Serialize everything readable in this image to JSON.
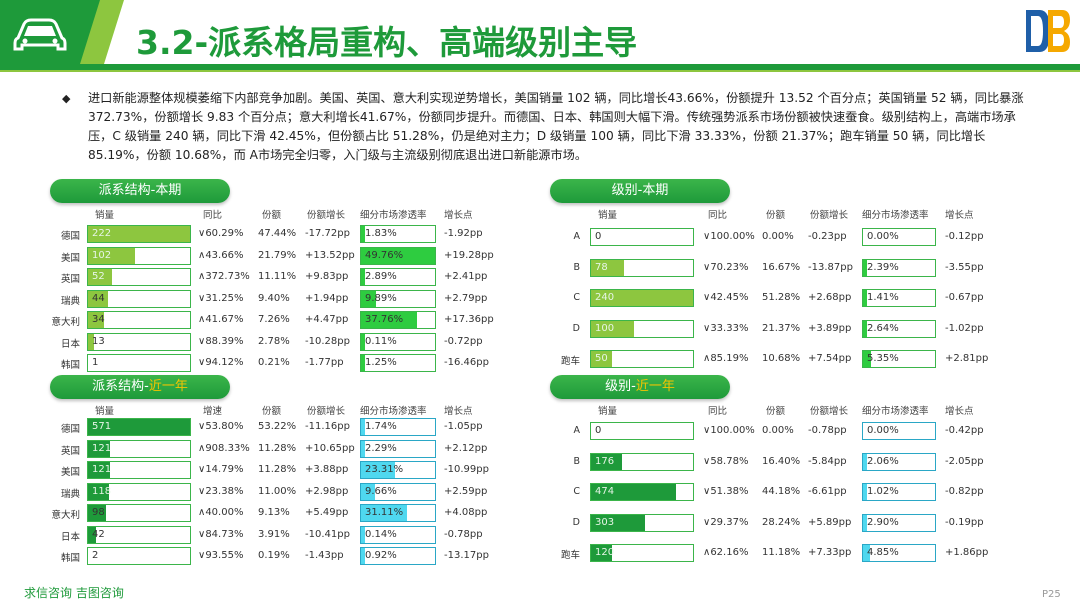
{
  "header": {
    "title": "3.2-派系格局重构、高端级别主导",
    "icons": [
      "car-icon",
      "brand-logo"
    ]
  },
  "intro": {
    "bullet": "◆",
    "text": "进口新能源整体规模萎缩下内部竞争加剧。美国、英国、意大利实现逆势增长，美国销量 102 辆，同比增长43.66%，份额提升 13.52 个百分点；英国销量 52 辆，同比暴涨 372.73%，份额增长 9.83 个百分点；意大利增长41.67%，份额同步提升。而德国、日本、韩国则大幅下滑。传统强势派系市场份额被快速蚕食。级别结构上，高端市场承压，C 级销量 240 辆，同比下滑 42.45%，但份额占比 51.28%，仍是绝对主力；D 级销量 100 辆，同比下滑 33.33%，份额 21.37%；跑车销量 50 辆，同比增长85.19%，份额 10.68%，而 A市场完全归零，入门级与主流级别彻底退出进口新能源市场。"
  },
  "colors": {
    "brand_green": "#1e9a3a",
    "light_green": "#8dc63f",
    "dark_green": "#1e9a3a",
    "cyan": "#2aa7c6",
    "highlight_yellow": "#f5c400"
  },
  "panels": [
    {
      "id": "faction-period",
      "title": "派系结构-本期",
      "title_highlight": "",
      "headers": [
        "销量",
        "同比",
        "份额",
        "份额增长",
        "细分市场渗透率",
        "增长点"
      ],
      "rows": [
        {
          "label": "德国",
          "sales": "222",
          "sales_value": 222,
          "yoy": "∨60.29%",
          "share": "47.44%",
          "share_change": "-17.72pp",
          "penetration": "1.83%",
          "penetration_value": 1.83,
          "growth": "-1.92pp"
        },
        {
          "label": "美国",
          "sales": "102",
          "sales_value": 102,
          "yoy": "∧43.66%",
          "share": "21.79%",
          "share_change": "+13.52pp",
          "penetration": "49.76%",
          "penetration_value": 49.76,
          "growth": "+19.28pp"
        },
        {
          "label": "英国",
          "sales": "52",
          "sales_value": 52,
          "yoy": "∧372.73%",
          "share": "11.11%",
          "share_change": "+9.83pp",
          "penetration": "2.89%",
          "penetration_value": 2.89,
          "growth": "+2.41pp"
        },
        {
          "label": "瑞典",
          "sales": "44",
          "sales_value": 44,
          "yoy": "∨31.25%",
          "share": "9.40%",
          "share_change": "+1.94pp",
          "penetration": "9.89%",
          "penetration_value": 9.89,
          "growth": "+2.79pp"
        },
        {
          "label": "意大利",
          "sales": "34",
          "sales_value": 34,
          "yoy": "∧41.67%",
          "share": "7.26%",
          "share_change": "+4.47pp",
          "penetration": "37.76%",
          "penetration_value": 37.76,
          "growth": "+17.36pp"
        },
        {
          "label": "日本",
          "sales": "13",
          "sales_value": 13,
          "yoy": "∨88.39%",
          "share": "2.78%",
          "share_change": "-10.28pp",
          "penetration": "0.11%",
          "penetration_value": 0.11,
          "growth": "-0.72pp"
        },
        {
          "label": "韩国",
          "sales": "1",
          "sales_value": 1,
          "yoy": "∨94.12%",
          "share": "0.21%",
          "share_change": "-1.77pp",
          "penetration": "1.25%",
          "penetration_value": 1.25,
          "growth": "-16.46pp"
        }
      ]
    },
    {
      "id": "level-period",
      "title": "级别-本期",
      "title_highlight": "",
      "headers": [
        "销量",
        "同比",
        "份额",
        "份额增长",
        "细分市场渗透率",
        "增长点"
      ],
      "rows": [
        {
          "label": "A",
          "sales": "0",
          "sales_value": 0,
          "yoy": "∨100.00%",
          "share": "0.00%",
          "share_change": "-0.23pp",
          "penetration": "0.00%",
          "penetration_value": 0,
          "growth": "-0.12pp"
        },
        {
          "label": "B",
          "sales": "78",
          "sales_value": 78,
          "yoy": "∨70.23%",
          "share": "16.67%",
          "share_change": "-13.87pp",
          "penetration": "2.39%",
          "penetration_value": 2.39,
          "growth": "-3.55pp"
        },
        {
          "label": "C",
          "sales": "240",
          "sales_value": 240,
          "yoy": "∨42.45%",
          "share": "51.28%",
          "share_change": "+2.68pp",
          "penetration": "1.41%",
          "penetration_value": 1.41,
          "growth": "-0.67pp"
        },
        {
          "label": "D",
          "sales": "100",
          "sales_value": 100,
          "yoy": "∨33.33%",
          "share": "21.37%",
          "share_change": "+3.89pp",
          "penetration": "2.64%",
          "penetration_value": 2.64,
          "growth": "-1.02pp"
        },
        {
          "label": "跑车",
          "sales": "50",
          "sales_value": 50,
          "yoy": "∧85.19%",
          "share": "10.68%",
          "share_change": "+7.54pp",
          "penetration": "5.35%",
          "penetration_value": 5.35,
          "growth": "+2.81pp"
        }
      ]
    },
    {
      "id": "faction-year",
      "title": "派系结构-",
      "title_highlight": "近一年",
      "headers": [
        "销量",
        "增速",
        "份额",
        "份额增长",
        "细分市场渗透率",
        "增长点"
      ],
      "rows": [
        {
          "label": "德国",
          "sales": "571",
          "sales_value": 571,
          "yoy": "∨53.80%",
          "share": "53.22%",
          "share_change": "-11.16pp",
          "penetration": "1.74%",
          "penetration_value": 1.74,
          "growth": "-1.05pp"
        },
        {
          "label": "英国",
          "sales": "121",
          "sales_value": 121,
          "yoy": "∧908.33%",
          "share": "11.28%",
          "share_change": "+10.65pp",
          "penetration": "2.29%",
          "penetration_value": 2.29,
          "growth": "+2.12pp"
        },
        {
          "label": "美国",
          "sales": "121",
          "sales_value": 121,
          "yoy": "∨14.79%",
          "share": "11.28%",
          "share_change": "+3.88pp",
          "penetration": "23.31%",
          "penetration_value": 23.31,
          "growth": "-10.99pp"
        },
        {
          "label": "瑞典",
          "sales": "118",
          "sales_value": 118,
          "yoy": "∨23.38%",
          "share": "11.00%",
          "share_change": "+2.98pp",
          "penetration": "9.66%",
          "penetration_value": 9.66,
          "growth": "+2.59pp"
        },
        {
          "label": "意大利",
          "sales": "98",
          "sales_value": 98,
          "yoy": "∧40.00%",
          "share": "9.13%",
          "share_change": "+5.49pp",
          "penetration": "31.11%",
          "penetration_value": 31.11,
          "growth": "+4.08pp"
        },
        {
          "label": "日本",
          "sales": "42",
          "sales_value": 42,
          "yoy": "∨84.73%",
          "share": "3.91%",
          "share_change": "-10.41pp",
          "penetration": "0.14%",
          "penetration_value": 0.14,
          "growth": "-0.78pp"
        },
        {
          "label": "韩国",
          "sales": "2",
          "sales_value": 2,
          "yoy": "∨93.55%",
          "share": "0.19%",
          "share_change": "-1.43pp",
          "penetration": "0.92%",
          "penetration_value": 0.92,
          "growth": "-13.17pp"
        }
      ]
    },
    {
      "id": "level-year",
      "title": "级别-",
      "title_highlight": "近一年",
      "headers": [
        "销量",
        "同比",
        "份额",
        "份额增长",
        "细分市场渗透率",
        "增长点"
      ],
      "rows": [
        {
          "label": "A",
          "sales": "0",
          "sales_value": 0,
          "yoy": "∨100.00%",
          "share": "0.00%",
          "share_change": "-0.78pp",
          "penetration": "0.00%",
          "penetration_value": 0,
          "growth": "-0.42pp"
        },
        {
          "label": "B",
          "sales": "176",
          "sales_value": 176,
          "yoy": "∨58.78%",
          "share": "16.40%",
          "share_change": "-5.84pp",
          "penetration": "2.06%",
          "penetration_value": 2.06,
          "growth": "-2.05pp"
        },
        {
          "label": "C",
          "sales": "474",
          "sales_value": 474,
          "yoy": "∨51.38%",
          "share": "44.18%",
          "share_change": "-6.61pp",
          "penetration": "1.02%",
          "penetration_value": 1.02,
          "growth": "-0.82pp"
        },
        {
          "label": "D",
          "sales": "303",
          "sales_value": 303,
          "yoy": "∨29.37%",
          "share": "28.24%",
          "share_change": "+5.89pp",
          "penetration": "2.90%",
          "penetration_value": 2.9,
          "growth": "-0.19pp"
        },
        {
          "label": "跑车",
          "sales": "120",
          "sales_value": 120,
          "yoy": "∧62.16%",
          "share": "11.18%",
          "share_change": "+7.33pp",
          "penetration": "4.85%",
          "penetration_value": 4.85,
          "growth": "+1.86pp"
        }
      ]
    }
  ],
  "footer": {
    "left": "求信咨询 吉图咨询",
    "page": "P25"
  }
}
